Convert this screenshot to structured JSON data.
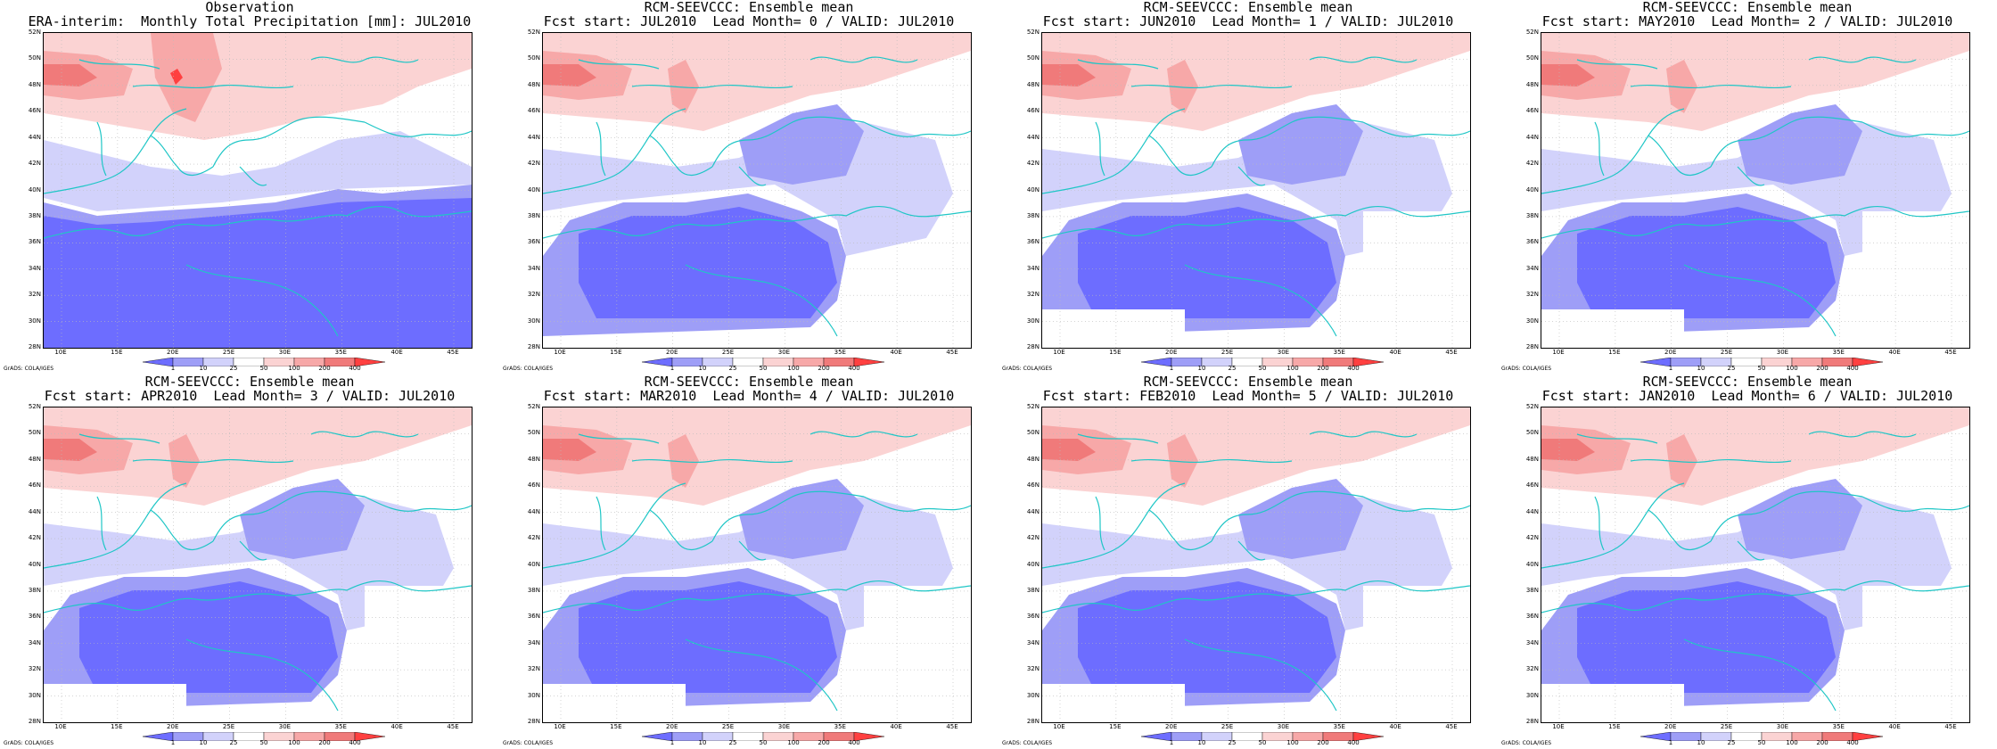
{
  "figure_credit": "GrADS: COLA/IGES",
  "colors": {
    "blue_dark": "#6d6dff",
    "blue_mid": "#9e9ef7",
    "blue_light": "#d2d2fb",
    "white": "#ffffff",
    "red_light": "#fbd3d3",
    "red_mid": "#f7a8a8",
    "red_dark": "#f07a7a",
    "red_deep": "#ff4040",
    "coast": "#1fc6c6"
  },
  "colorbar": {
    "labels": [
      "1",
      "10",
      "25",
      "50",
      "100",
      "200",
      "400"
    ],
    "colors": [
      "#6d6dff",
      "#9e9ef7",
      "#d2d2fb",
      "#ffffff",
      "#fbd3d3",
      "#f7a8a8",
      "#f07a7a",
      "#ff4040"
    ]
  },
  "axes": {
    "lat_labels": [
      "52N",
      "50N",
      "48N",
      "46N",
      "44N",
      "42N",
      "40N",
      "38N",
      "36N",
      "34N",
      "32N",
      "30N",
      "28N"
    ],
    "lon_labels": [
      "10E",
      "15E",
      "20E",
      "25E",
      "30E",
      "35E",
      "40E",
      "45E"
    ]
  },
  "panels": [
    {
      "title1": "Observation",
      "title2": "ERA-interim:  Monthly Total Precipitation [mm]: JUL2010"
    },
    {
      "title1": "RCM-SEEVCCC: Ensemble mean",
      "title2": "Fcst start: JUL2010  Lead Month= 0 / VALID: JUL2010"
    },
    {
      "title1": "RCM-SEEVCCC: Ensemble mean",
      "title2": "Fcst start: JUN2010  Lead Month= 1 / VALID: JUL2010"
    },
    {
      "title1": "RCM-SEEVCCC: Ensemble mean",
      "title2": "Fcst start: MAY2010  Lead Month= 2 / VALID: JUL2010"
    },
    {
      "title1": "RCM-SEEVCCC: Ensemble mean",
      "title2": "Fcst start: APR2010  Lead Month= 3 / VALID: JUL2010"
    },
    {
      "title1": "RCM-SEEVCCC: Ensemble mean",
      "title2": "Fcst start: MAR2010  Lead Month= 4 / VALID: JUL2010"
    },
    {
      "title1": "RCM-SEEVCCC: Ensemble mean",
      "title2": "Fcst start: FEB2010  Lead Month= 5 / VALID: JUL2010"
    },
    {
      "title1": "RCM-SEEVCCC: Ensemble mean",
      "title2": "Fcst start: JAN2010  Lead Month= 6 / VALID: JUL2010"
    }
  ]
}
